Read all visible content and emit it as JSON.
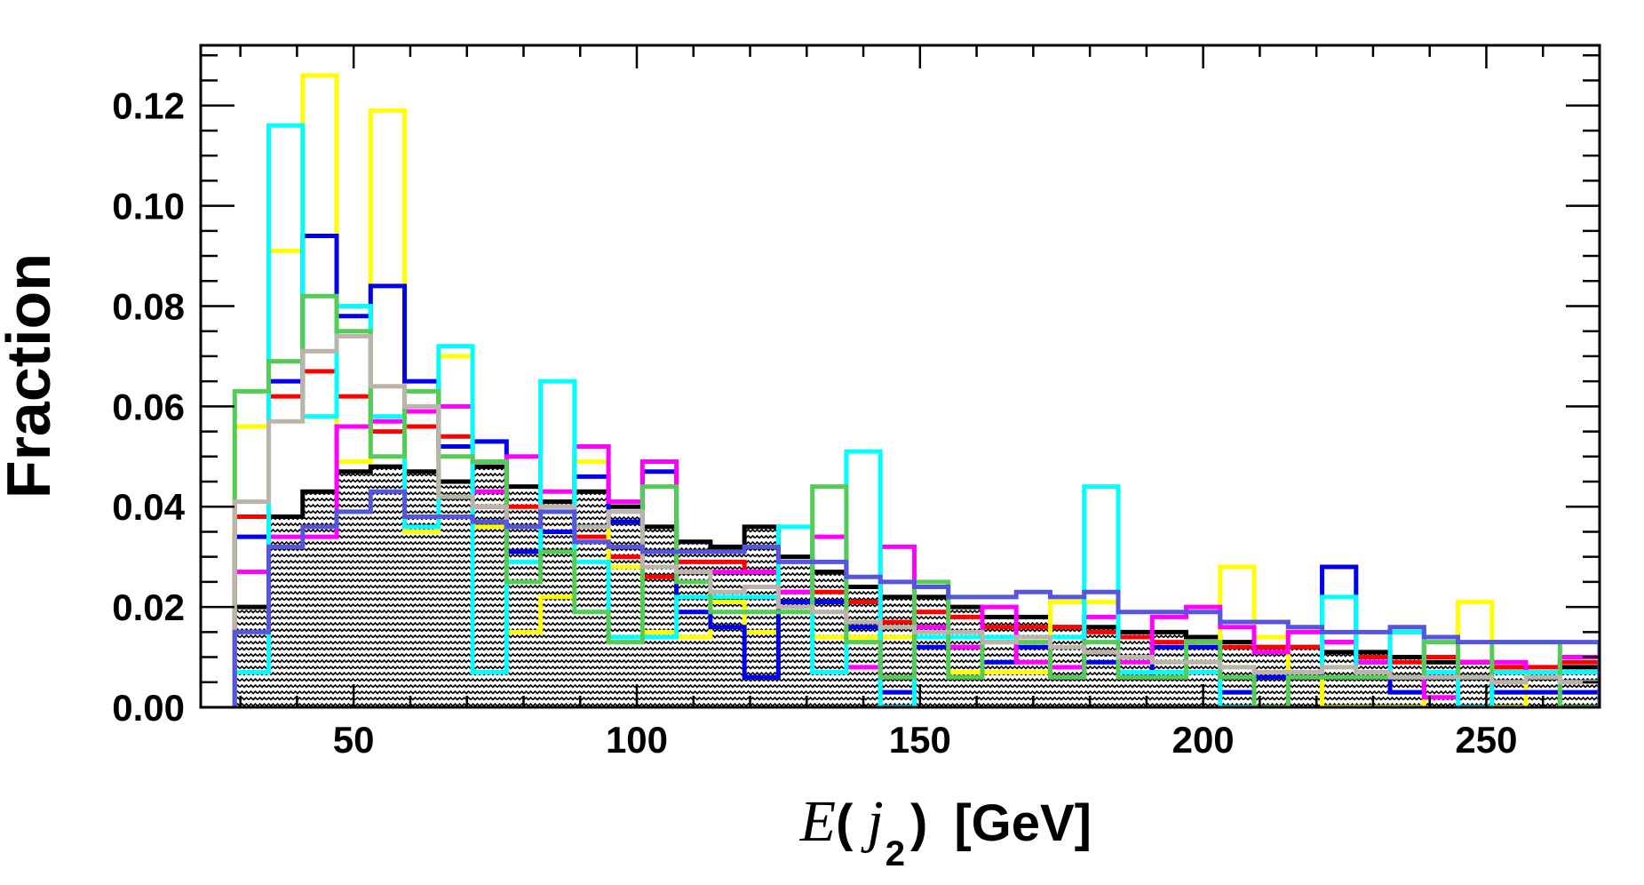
{
  "chart_data": {
    "type": "histogram",
    "title": "",
    "xlabel": {
      "symbol": "E",
      "jet": "j",
      "subscript": "2",
      "unit": "[GeV]"
    },
    "ylabel": "Fraction",
    "xlim": [
      23,
      270
    ],
    "ylim": [
      0,
      0.132
    ],
    "x_ticks": [
      50,
      100,
      150,
      200,
      250
    ],
    "x_tick_labels": [
      "50",
      "100",
      "150",
      "200",
      "250"
    ],
    "y_ticks": [
      0.0,
      0.02,
      0.04,
      0.06,
      0.08,
      0.1,
      0.12
    ],
    "y_tick_labels": [
      "0.00",
      "0.02",
      "0.04",
      "0.06",
      "0.08",
      "0.10",
      "0.12"
    ],
    "grid": false,
    "legend": "none",
    "bin_edges": [
      29,
      35,
      41,
      47,
      53,
      59,
      65,
      71,
      77,
      83,
      89,
      95,
      101,
      107,
      113,
      119,
      125,
      131,
      137,
      143,
      149,
      155,
      161,
      167,
      173,
      179,
      185,
      191,
      197,
      203,
      209,
      215,
      221,
      227,
      233,
      239,
      245,
      251,
      257,
      263,
      270
    ],
    "series": [
      {
        "color": "#000000",
        "style": "filled-hatched",
        "values": [
          0.02,
          0.038,
          0.043,
          0.047,
          0.048,
          0.047,
          0.045,
          0.048,
          0.044,
          0.041,
          0.043,
          0.04,
          0.036,
          0.033,
          0.032,
          0.036,
          0.03,
          0.027,
          0.024,
          0.022,
          0.022,
          0.02,
          0.018,
          0.018,
          0.016,
          0.016,
          0.015,
          0.015,
          0.014,
          0.013,
          0.012,
          0.012,
          0.011,
          0.011,
          0.01,
          0.009,
          0.009,
          0.008,
          0.007,
          0.008
        ]
      },
      {
        "color": "#ff0000",
        "style": "line",
        "values": [
          0.038,
          0.062,
          0.067,
          0.062,
          0.055,
          0.056,
          0.054,
          0.04,
          0.04,
          0.035,
          0.034,
          0.03,
          0.026,
          0.029,
          0.029,
          0.027,
          0.023,
          0.023,
          0.021,
          0.017,
          0.019,
          0.018,
          0.016,
          0.016,
          0.016,
          0.015,
          0.014,
          0.013,
          0.013,
          0.012,
          0.012,
          0.012,
          0.013,
          0.01,
          0.009,
          0.01,
          0.009,
          0.008,
          0.008,
          0.009
        ]
      },
      {
        "color": "#ffff00",
        "style": "line",
        "values": [
          0.056,
          0.091,
          0.126,
          0.049,
          0.119,
          0.035,
          0.07,
          0.036,
          0.015,
          0.022,
          0.049,
          0.028,
          0.015,
          0.014,
          0.021,
          0.015,
          0.021,
          0.014,
          0.014,
          0.014,
          0.012,
          0.007,
          0.007,
          0.007,
          0.021,
          0.021,
          0.007,
          0.007,
          0.007,
          0.028,
          0.014,
          0.007,
          0.0,
          0.0,
          0.0,
          0.007,
          0.021,
          0.0,
          0.007,
          0.007
        ]
      },
      {
        "color": "#0000ee",
        "style": "line",
        "values": [
          0.034,
          0.065,
          0.094,
          0.078,
          0.084,
          0.065,
          0.052,
          0.053,
          0.031,
          0.035,
          0.046,
          0.037,
          0.047,
          0.019,
          0.016,
          0.006,
          0.021,
          0.021,
          0.016,
          0.003,
          0.012,
          0.012,
          0.009,
          0.012,
          0.006,
          0.009,
          0.006,
          0.012,
          0.012,
          0.003,
          0.006,
          0.006,
          0.028,
          0.009,
          0.003,
          0.006,
          0.006,
          0.003,
          0.003,
          0.003
        ]
      },
      {
        "color": "#ff00ff",
        "style": "line",
        "values": [
          0.027,
          0.034,
          0.034,
          0.056,
          0.057,
          0.059,
          0.06,
          0.043,
          0.05,
          0.043,
          0.052,
          0.041,
          0.049,
          0.027,
          0.027,
          0.027,
          0.023,
          0.034,
          0.008,
          0.032,
          0.016,
          0.012,
          0.02,
          0.009,
          0.008,
          0.018,
          0.009,
          0.018,
          0.02,
          0.016,
          0.011,
          0.015,
          0.013,
          0.009,
          0.015,
          0.002,
          0.009,
          0.009,
          0.007,
          0.01
        ]
      },
      {
        "color": "#00ffff",
        "style": "line",
        "values": [
          0.007,
          0.116,
          0.058,
          0.08,
          0.058,
          0.036,
          0.072,
          0.007,
          0.029,
          0.065,
          0.029,
          0.014,
          0.014,
          0.022,
          0.022,
          0.022,
          0.036,
          0.007,
          0.051,
          0.0,
          0.014,
          0.014,
          0.014,
          0.014,
          0.014,
          0.044,
          0.007,
          0.007,
          0.007,
          0.0,
          0.007,
          0.007,
          0.022,
          0.007,
          0.015,
          0.007,
          0.0,
          0.007,
          0.007,
          0.007
        ]
      },
      {
        "color": "#55cc55",
        "style": "line",
        "values": [
          0.063,
          0.069,
          0.082,
          0.075,
          0.05,
          0.063,
          0.05,
          0.049,
          0.025,
          0.031,
          0.019,
          0.013,
          0.044,
          0.025,
          0.019,
          0.019,
          0.019,
          0.044,
          0.013,
          0.006,
          0.025,
          0.006,
          0.013,
          0.013,
          0.006,
          0.013,
          0.006,
          0.006,
          0.013,
          0.006,
          0.0,
          0.006,
          0.006,
          0.006,
          0.006,
          0.013,
          0.006,
          0.013,
          0.013,
          0.0
        ]
      },
      {
        "color": "#bbb4aa",
        "style": "line",
        "values": [
          0.041,
          0.057,
          0.071,
          0.074,
          0.064,
          0.06,
          0.042,
          0.04,
          0.036,
          0.04,
          0.036,
          0.039,
          0.028,
          0.027,
          0.023,
          0.024,
          0.02,
          0.019,
          0.017,
          0.016,
          0.015,
          0.015,
          0.013,
          0.014,
          0.012,
          0.011,
          0.01,
          0.009,
          0.009,
          0.008,
          0.007,
          0.007,
          0.008,
          0.007,
          0.006,
          0.006,
          0.006,
          0.005,
          0.006,
          0.005
        ]
      },
      {
        "color": "#5555dd",
        "style": "line",
        "values": [
          0.015,
          0.032,
          0.036,
          0.039,
          0.043,
          0.038,
          0.038,
          0.037,
          0.036,
          0.039,
          0.033,
          0.032,
          0.031,
          0.031,
          0.031,
          0.032,
          0.029,
          0.029,
          0.026,
          0.025,
          0.024,
          0.022,
          0.022,
          0.023,
          0.022,
          0.023,
          0.019,
          0.019,
          0.019,
          0.017,
          0.017,
          0.016,
          0.015,
          0.015,
          0.016,
          0.014,
          0.013,
          0.013,
          0.013,
          0.013
        ]
      }
    ]
  }
}
